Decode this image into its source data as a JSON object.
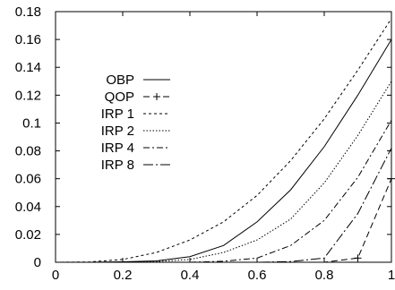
{
  "chart_data": {
    "type": "line",
    "title": "",
    "xlabel": "",
    "ylabel": "",
    "xlim": [
      0,
      1
    ],
    "ylim": [
      0,
      0.18
    ],
    "x_ticks": [
      0,
      0.2,
      0.4,
      0.6,
      0.8,
      1
    ],
    "x_tick_labels": [
      "0",
      "0.2",
      "0.4",
      "0.6",
      "0.8",
      "1"
    ],
    "y_ticks": [
      0,
      0.02,
      0.04,
      0.06,
      0.08,
      0.1,
      0.12,
      0.14,
      0.16,
      0.18
    ],
    "y_tick_labels": [
      "0",
      "0.02",
      "0.04",
      "0.06",
      "0.08",
      "0.1",
      "0.12",
      "0.14",
      "0.16",
      "0.18"
    ],
    "grid": false,
    "legend_position": "left",
    "x": [
      0,
      0.1,
      0.2,
      0.3,
      0.4,
      0.5,
      0.6,
      0.7,
      0.8,
      0.9,
      1
    ],
    "series": [
      {
        "name": "OBP",
        "dash": "solid",
        "marker": "none",
        "values": [
          0,
          0,
          0.0003,
          0.001,
          0.004,
          0.012,
          0.029,
          0.052,
          0.083,
          0.12,
          0.16
        ]
      },
      {
        "name": "QOP",
        "dash": "dashed",
        "marker": "plus",
        "values": [
          0,
          0,
          0,
          0,
          0,
          0,
          0,
          0,
          0,
          0.003,
          0.06
        ]
      },
      {
        "name": "IRP 1",
        "dash": "dotted-dense",
        "marker": "none",
        "values": [
          0,
          0.0002,
          0.002,
          0.007,
          0.016,
          0.029,
          0.048,
          0.073,
          0.103,
          0.138,
          0.175
        ]
      },
      {
        "name": "IRP 2",
        "dash": "dotted",
        "marker": "none",
        "values": [
          0,
          0,
          0,
          0.0005,
          0.002,
          0.007,
          0.016,
          0.031,
          0.057,
          0.091,
          0.13
        ]
      },
      {
        "name": "IRP 4",
        "dash": "dash-dot",
        "marker": "none",
        "values": [
          0,
          0,
          0,
          0,
          0,
          0.0007,
          0.003,
          0.012,
          0.03,
          0.061,
          0.102
        ]
      },
      {
        "name": "IRP 8",
        "dash": "dash-dot-long",
        "marker": "none",
        "values": [
          0,
          0,
          0,
          0,
          0,
          0,
          0,
          0.0005,
          0.003,
          0.035,
          0.082
        ]
      }
    ]
  }
}
